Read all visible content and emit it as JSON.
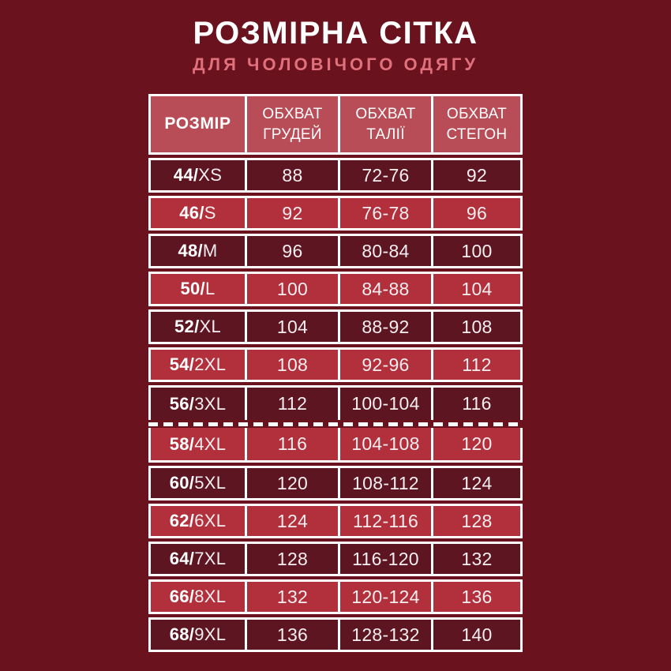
{
  "header": {
    "title": "РОЗМІРНА СІТКА",
    "subtitle": "ДЛЯ ЧОЛОВІЧОГО ОДЯГУ"
  },
  "table": {
    "column_headers": [
      {
        "lines": [
          "РОЗМІР"
        ]
      },
      {
        "lines": [
          "ОБХВАТ",
          "ГРУДЕЙ"
        ]
      },
      {
        "lines": [
          "ОБХВАТ",
          "ТАЛІЇ"
        ]
      },
      {
        "lines": [
          "ОБХВАТ",
          "СТЕГОН"
        ]
      }
    ],
    "rows": [
      {
        "size": "44/XS",
        "chest": "88",
        "waist": "72-76",
        "hips": "92"
      },
      {
        "size": "46/S",
        "chest": "92",
        "waist": "76-78",
        "hips": "96"
      },
      {
        "size": "48/M",
        "chest": "96",
        "waist": "80-84",
        "hips": "100"
      },
      {
        "size": "50/L",
        "chest": "100",
        "waist": "84-88",
        "hips": "104"
      },
      {
        "size": "52/XL",
        "chest": "104",
        "waist": "88-92",
        "hips": "108"
      },
      {
        "size": "54/2XL",
        "chest": "108",
        "waist": "92-96",
        "hips": "112"
      },
      {
        "size": "56/3XL",
        "chest": "112",
        "waist": "100-104",
        "hips": "116"
      },
      {
        "size": "58/4XL",
        "chest": "116",
        "waist": "104-108",
        "hips": "120"
      },
      {
        "size": "60/5XL",
        "chest": "120",
        "waist": "108-112",
        "hips": "124"
      },
      {
        "size": "62/6XL",
        "chest": "124",
        "waist": "112-116",
        "hips": "128"
      },
      {
        "size": "64/7XL",
        "chest": "128",
        "waist": "116-120",
        "hips": "132"
      },
      {
        "size": "66/8XL",
        "chest": "132",
        "waist": "120-124",
        "hips": "136"
      },
      {
        "size": "68/9XL",
        "chest": "136",
        "waist": "128-132",
        "hips": "140"
      }
    ],
    "dashed_divider_after_row_index": 6
  },
  "colors": {
    "page_background": "#6a121d",
    "row_dark": "#5d1521",
    "row_red": "#b2303c",
    "header_row_bg": "#b94d57",
    "subtitle_text": "#e0717c",
    "table_border": "#ffffff"
  }
}
